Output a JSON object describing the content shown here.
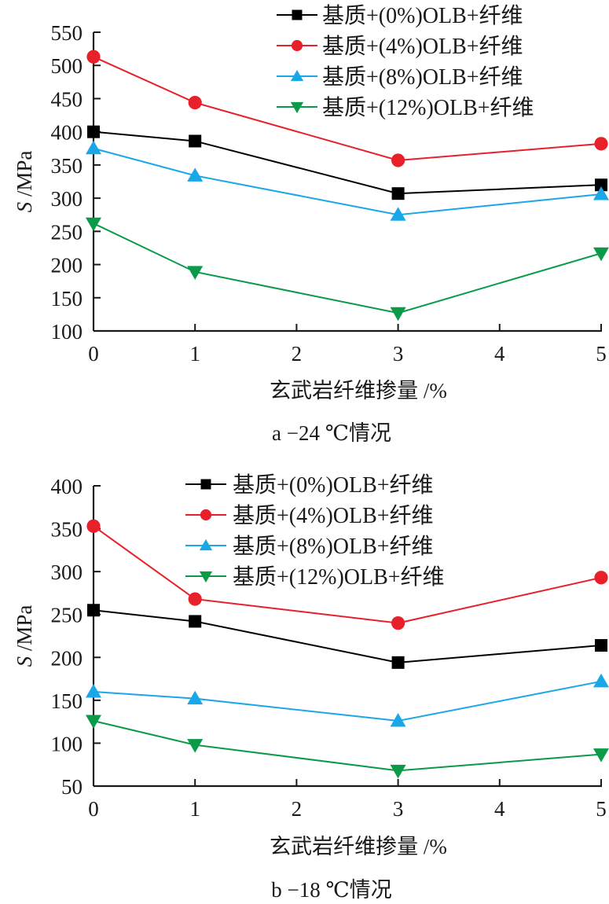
{
  "chart_data": [
    {
      "type": "line",
      "panel": "a",
      "caption": "a  −24 ℃情况",
      "xlabel": "玄武岩纤维掺量 /%",
      "ylabel_italic": "S",
      "ylabel_unit": " /MPa",
      "x": [
        0,
        1,
        3,
        5
      ],
      "xlim": [
        0,
        5
      ],
      "xticks": [
        0,
        1,
        2,
        3,
        4,
        5
      ],
      "ylim": [
        100,
        550
      ],
      "yticks": [
        100,
        150,
        200,
        250,
        300,
        350,
        400,
        450,
        500,
        550
      ],
      "grid": false,
      "legend_position": "top-right",
      "series": [
        {
          "name": "基质+(0%)OLB+纤维",
          "marker": "square",
          "color": "#000000",
          "values": [
            400,
            386,
            307,
            320
          ]
        },
        {
          "name": "基质+(4%)OLB+纤维",
          "marker": "circle",
          "color": "#e8202a",
          "values": [
            513,
            444,
            357,
            382
          ]
        },
        {
          "name": "基质+(8%)OLB+纤维",
          "marker": "triangle-up",
          "color": "#1aa7e8",
          "values": [
            375,
            334,
            275,
            306
          ]
        },
        {
          "name": "基质+(12%)OLB+纤维",
          "marker": "triangle-down",
          "color": "#0a9a48",
          "values": [
            262,
            189,
            127,
            217
          ]
        }
      ]
    },
    {
      "type": "line",
      "panel": "b",
      "caption": "b  −18 ℃情况",
      "xlabel": "玄武岩纤维掺量 /%",
      "ylabel_italic": "S",
      "ylabel_unit": " /MPa",
      "x": [
        0,
        1,
        3,
        5
      ],
      "xlim": [
        0,
        5
      ],
      "xticks": [
        0,
        1,
        2,
        3,
        4,
        5
      ],
      "ylim": [
        50,
        400
      ],
      "yticks": [
        50,
        100,
        150,
        200,
        250,
        300,
        350,
        400
      ],
      "grid": false,
      "legend_position": "top-right",
      "series": [
        {
          "name": "基质+(0%)OLB+纤维",
          "marker": "square",
          "color": "#000000",
          "values": [
            255,
            242,
            194,
            214
          ]
        },
        {
          "name": "基质+(4%)OLB+纤维",
          "marker": "circle",
          "color": "#e8202a",
          "values": [
            353,
            268,
            240,
            293
          ]
        },
        {
          "name": "基质+(8%)OLB+纤维",
          "marker": "triangle-up",
          "color": "#1aa7e8",
          "values": [
            160,
            152,
            126,
            172
          ]
        },
        {
          "name": "基质+(12%)OLB+纤维",
          "marker": "triangle-down",
          "color": "#0a9a48",
          "values": [
            126,
            98,
            68,
            87
          ]
        }
      ]
    }
  ]
}
